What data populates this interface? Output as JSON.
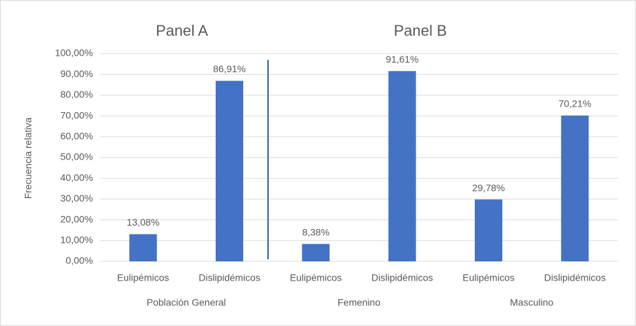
{
  "chart_data": {
    "type": "bar",
    "annotations": [
      "Panel A",
      "Panel B"
    ],
    "y_label": "Frecuencia relativa",
    "categories": [
      "Eulipémicos",
      "Dislipidémicos",
      "Eulipémicos",
      "Dislipidémicos",
      "Eulipémicos",
      "Dislipidémicos"
    ],
    "groups": [
      "Población General",
      "Femenino",
      "Masculino"
    ],
    "values": [
      13.08,
      86.91,
      8.38,
      91.61,
      29.78,
      70.21
    ],
    "value_labels": [
      "13,08%",
      "86,91%",
      "8,38%",
      "91,61%",
      "29,78%",
      "70,21%"
    ],
    "color": "#4472c4",
    "ylim": [
      0,
      100
    ],
    "yticks": [
      {
        "value": 0,
        "label": "0,00%"
      },
      {
        "value": 10,
        "label": "10,00%"
      },
      {
        "value": 20,
        "label": "20,00%"
      },
      {
        "value": 30,
        "label": "30,00%"
      },
      {
        "value": 40,
        "label": "40,00%"
      },
      {
        "value": 50,
        "label": "50,00%"
      },
      {
        "value": 60,
        "label": "60,00%"
      },
      {
        "value": 70,
        "label": "70,00%"
      },
      {
        "value": 80,
        "label": "80,00%"
      },
      {
        "value": 90,
        "label": "90,00%"
      },
      {
        "value": 100,
        "label": "100,00%"
      }
    ],
    "grid": true
  }
}
